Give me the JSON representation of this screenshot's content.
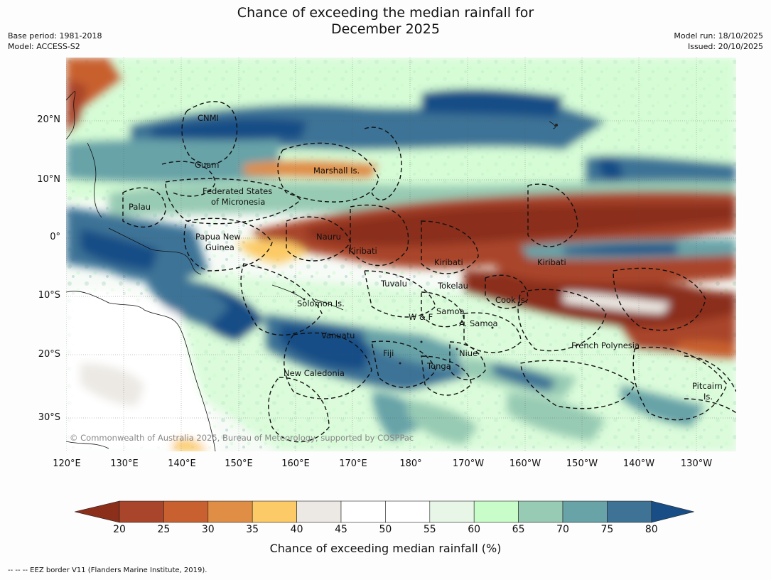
{
  "title": {
    "line1": "Chance of exceeding the median rainfall for",
    "line2": "December 2025"
  },
  "meta_left": {
    "base_period": "Base period: 1981-2018",
    "model": "Model: ACCESS-S2"
  },
  "meta_right": {
    "model_run": "Model run: 18/10/2025",
    "issued": "Issued: 20/10/2025"
  },
  "map": {
    "lat_ticks": [
      "20°N",
      "10°N",
      "0°",
      "10°S",
      "20°S",
      "30°S"
    ],
    "lon_ticks": [
      "120°E",
      "130°E",
      "140°E",
      "150°E",
      "160°E",
      "170°E",
      "180°",
      "170°W",
      "160°W",
      "150°W",
      "140°W",
      "130°W"
    ],
    "places": [
      "CNMI",
      "Guam",
      "Marshall Is.",
      "Federated States",
      "of Micronesia",
      "Palau",
      "Papua New",
      "Guinea",
      "Nauru",
      "Kiribati",
      "Kiribati",
      "Kiribati",
      "Tuvalu",
      "Tokelau",
      "Cook Is.",
      "Solomon Is.",
      "Samoa",
      "W & F",
      "A. Samoa",
      "Vanuatu",
      "Fiji",
      "Niue",
      "Tonga",
      "New Caledonia",
      "French Polynesia",
      "Pitcairn",
      "Is."
    ],
    "copyright": "© Commonwealth of Australia 2025, Bureau of Meteorology, supported by COSPPac"
  },
  "colorbar": {
    "ticks": [
      "20",
      "25",
      "30",
      "35",
      "40",
      "45",
      "50",
      "55",
      "60",
      "65",
      "70",
      "75",
      "80"
    ],
    "colors": [
      "#8b2e1a",
      "#a9452a",
      "#c8612f",
      "#e08e45",
      "#fcca66",
      "#ece9e4",
      "#ffffff",
      "#ffffff",
      "#e7f6e7",
      "#c8fcc8",
      "#98cbb4",
      "#68a3a8",
      "#3e7396",
      "#194d86"
    ],
    "label": "Chance of exceeding median rainfall (%)"
  },
  "footer": "--  --  -- EEZ border V11 (Flanders Marine Institute, 2019)."
}
